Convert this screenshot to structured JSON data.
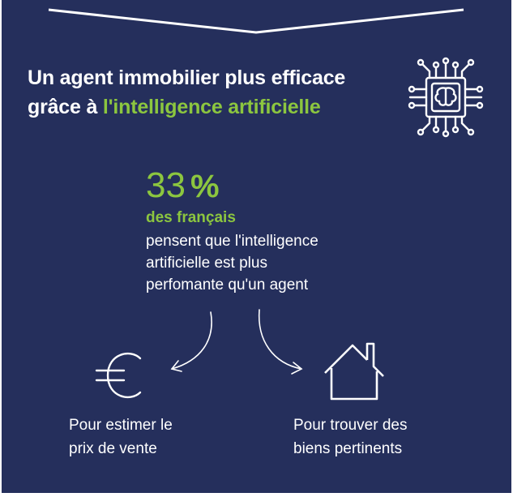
{
  "title": {
    "line1": "Un agent immobilier plus efficace",
    "line2_prefix": "grâce à ",
    "line2_accent": "l'intelligence artificielle"
  },
  "stat": {
    "value": "33",
    "unit": "%",
    "highlight": "des français",
    "description_lines": [
      "pensent que l'intelligence",
      "artificielle est plus",
      "perfomante qu'un agent"
    ]
  },
  "items": [
    {
      "icon": "euro-icon",
      "lines": [
        "Pour estimer le",
        "prix de vente"
      ]
    },
    {
      "icon": "house-icon",
      "lines": [
        "Pour trouver des",
        "biens pertinents"
      ]
    }
  ],
  "icons": {
    "header": "ai-chip-brain-icon"
  },
  "colors": {
    "background": "#252f5c",
    "accent": "#8cc63f",
    "text": "#ffffff"
  }
}
